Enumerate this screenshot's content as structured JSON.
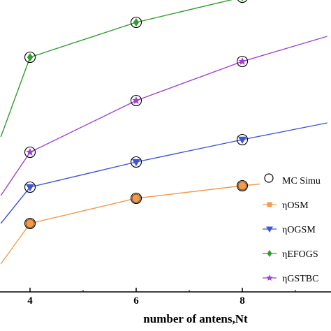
{
  "chart_data": {
    "type": "line",
    "xlabel": "number of antens,Nt",
    "ylabel": "",
    "title": "",
    "xlim": [
      3.45,
      9.6
    ],
    "ylim": [
      0,
      1
    ],
    "x_ticks": [
      "4",
      "6",
      "8"
    ],
    "grid": false,
    "legend_position": "right",
    "marker_note": "MC Simulation (open circle markers on every series point)",
    "legend": [
      {
        "label": "MC Simu",
        "marker": "open-circle",
        "color": "#000000"
      },
      {
        "label": "ηOSM",
        "marker": "square",
        "color": "#f29b4b"
      },
      {
        "label": "ηOGSM",
        "marker": "triangle-down",
        "color": "#3c55d6"
      },
      {
        "label": "ηEFOGS",
        "marker": "diamond",
        "color": "#2e9e2a"
      },
      {
        "label": "ηGSTBC",
        "marker": "star",
        "color": "#a23fd0"
      }
    ],
    "series": [
      {
        "name": "ηOSM",
        "color": "#f29b4b",
        "marker": "circle-fill",
        "x": [
          3.45,
          4,
          6,
          8,
          9.6
        ],
        "y": [
          0.055,
          0.2,
          0.29,
          0.335,
          0.365
        ],
        "mc_points": [
          4,
          6,
          8
        ]
      },
      {
        "name": "ηOGSM",
        "color": "#3c55d6",
        "marker": "triangle-down",
        "x": [
          3.45,
          4,
          6,
          8,
          9.6
        ],
        "y": [
          0.2,
          0.33,
          0.42,
          0.5,
          0.56
        ],
        "mc_points": [
          4,
          6,
          8
        ]
      },
      {
        "name": "ηEFOGS",
        "color": "#2e9e2a",
        "marker": "diamond",
        "x": [
          3.45,
          4,
          6,
          8,
          9.6
        ],
        "y": [
          0.51,
          0.795,
          0.92,
          1.01,
          1.08
        ],
        "mc_points": [
          4,
          6,
          8
        ]
      },
      {
        "name": "ηGSTBC",
        "color": "#a23fd0",
        "marker": "star",
        "x": [
          3.45,
          4,
          6,
          8,
          9.6
        ],
        "y": [
          0.3,
          0.455,
          0.64,
          0.78,
          0.87
        ],
        "mc_points": [
          4,
          6,
          8
        ]
      }
    ]
  }
}
